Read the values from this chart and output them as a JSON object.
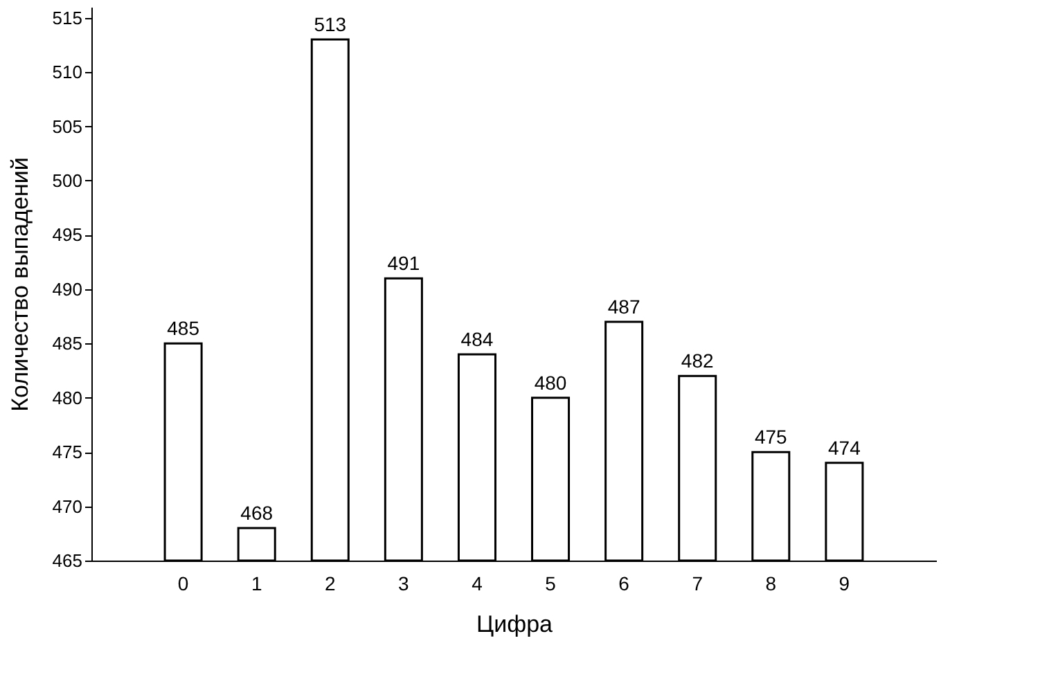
{
  "chart_data": {
    "type": "bar",
    "xlabel": "Цифра",
    "ylabel": "Количество выпадений",
    "categories": [
      "0",
      "1",
      "2",
      "3",
      "4",
      "5",
      "6",
      "7",
      "8",
      "9"
    ],
    "values": [
      485,
      468,
      513,
      491,
      484,
      480,
      487,
      482,
      475,
      474
    ],
    "color": "#ffffff",
    "ylim": [
      465,
      516
    ],
    "yticks": [
      465,
      470,
      475,
      480,
      485,
      490,
      495,
      500,
      505,
      510,
      515
    ],
    "grid": false,
    "data_labels": true
  }
}
